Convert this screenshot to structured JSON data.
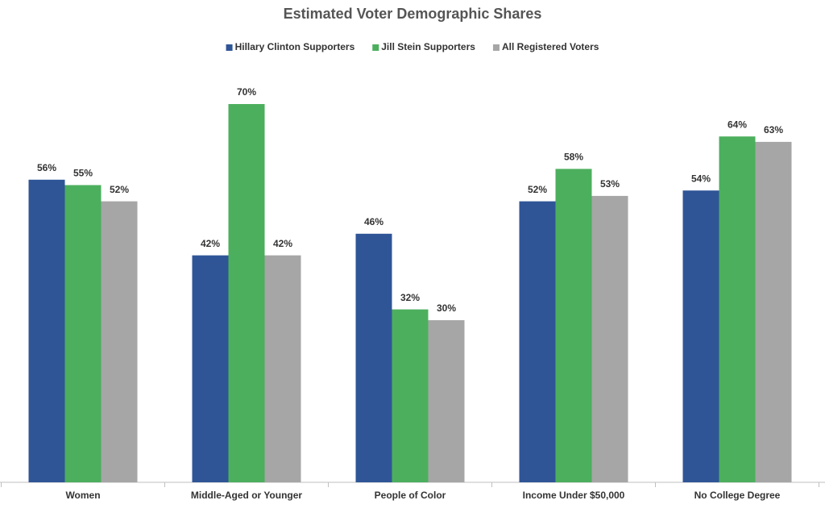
{
  "chart_data": {
    "type": "bar",
    "title": "Estimated Voter Demographic Shares",
    "categories": [
      "Women",
      "Middle-Aged or Younger",
      "People of Color",
      "Income Under $50,000",
      "No College Degree"
    ],
    "series": [
      {
        "name": "Hillary Clinton Supporters",
        "color": "#2f5597",
        "values": [
          56,
          42,
          46,
          52,
          54
        ],
        "value_labels": [
          "56%",
          "42%",
          "46%",
          "52%",
          "54%"
        ]
      },
      {
        "name": "Jill Stein Supporters",
        "color": "#4caf5e",
        "values": [
          55,
          70,
          32,
          58,
          64
        ],
        "value_labels": [
          "55%",
          "70%",
          "32%",
          "58%",
          "64%"
        ]
      },
      {
        "name": "All Registered Voters",
        "color": "#a6a6a6",
        "values": [
          52,
          42,
          30,
          53,
          63
        ],
        "value_labels": [
          "52%",
          "42%",
          "30%",
          "53%",
          "63%"
        ]
      }
    ],
    "ylim": [
      0,
      75
    ],
    "legend": "top"
  }
}
